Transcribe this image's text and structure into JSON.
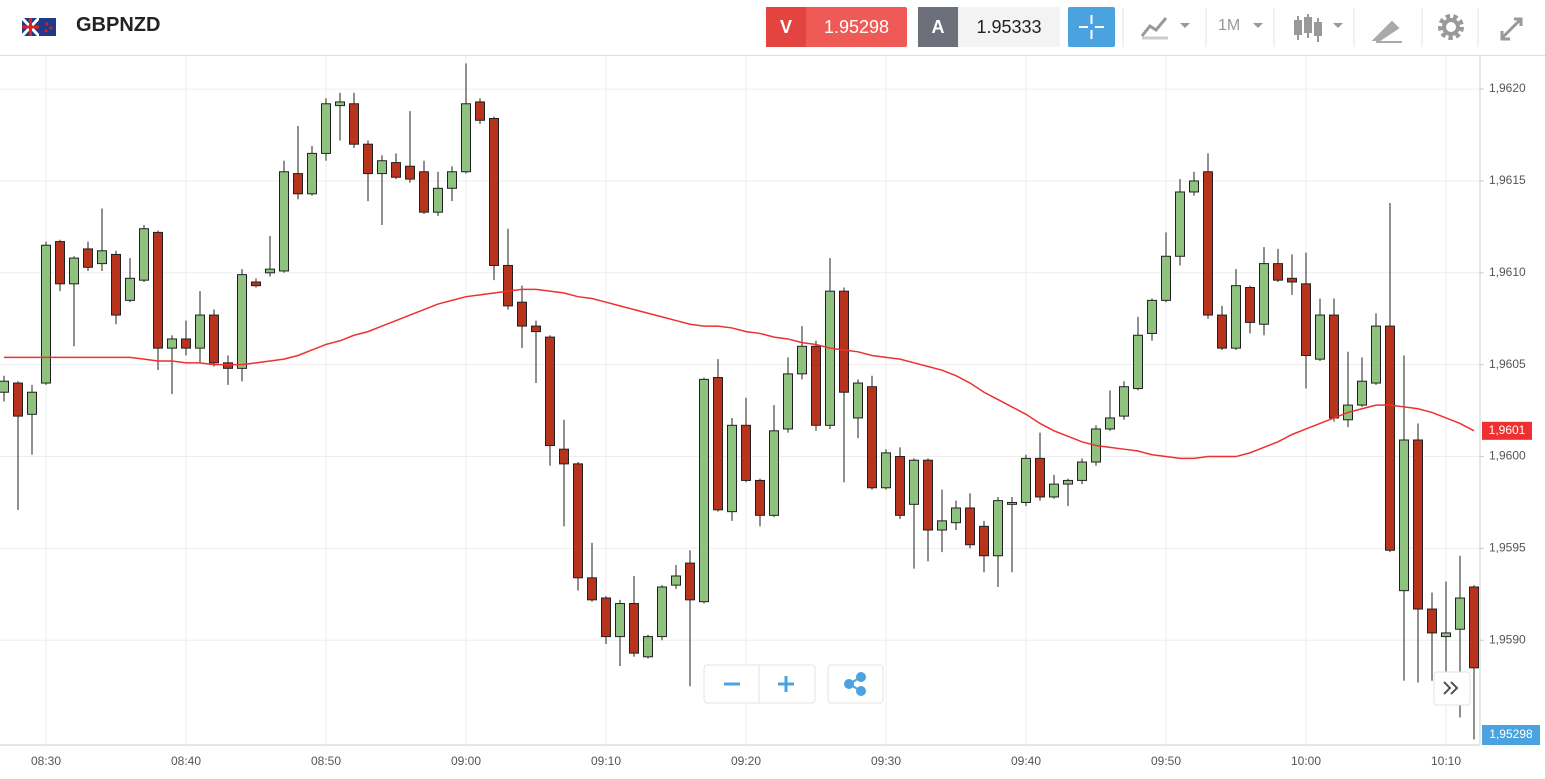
{
  "toolbar": {
    "symbol": "GBPNZD",
    "sell_label": "V",
    "sell_price": "1.95298",
    "buy_label": "A",
    "buy_price": "1.95333",
    "timeframe": "1M"
  },
  "chart_data": {
    "type": "candlestick",
    "categories": [
      null,
      null,
      null,
      "08:30",
      null,
      null,
      null,
      null,
      null,
      null,
      null,
      null,
      null,
      "08:40",
      null,
      null,
      null,
      null,
      null,
      null,
      null,
      null,
      null,
      "08:50",
      null,
      null,
      null,
      null,
      null,
      null,
      null,
      null,
      null,
      "09:00",
      null,
      null,
      null,
      null,
      null,
      null,
      null,
      null,
      null,
      "09:10",
      null,
      null,
      null,
      null,
      null,
      null,
      null,
      null,
      null,
      "09:20",
      null,
      null,
      null,
      null,
      null,
      null,
      null,
      null,
      null,
      "09:30",
      null,
      null,
      null,
      null,
      null,
      null,
      null,
      null,
      null,
      "09:40",
      null,
      null,
      null,
      null,
      null,
      null,
      null,
      null,
      null,
      "09:50",
      null,
      null,
      null,
      null,
      null,
      null,
      null,
      null,
      null,
      "10:00",
      null,
      null,
      null,
      null,
      null,
      null,
      null,
      null,
      null,
      "10:10",
      null,
      null
    ],
    "open": [
      1.96035,
      1.9604,
      1.96023,
      1.9604,
      1.96117,
      1.96094,
      1.96113,
      1.96105,
      1.9611,
      1.96085,
      1.96096,
      1.96122,
      1.96059,
      1.96064,
      1.96059,
      1.96077,
      1.96051,
      1.96048,
      1.96095,
      1.961,
      1.96101,
      1.96154,
      1.96143,
      1.96165,
      1.96191,
      1.96192,
      1.9617,
      1.96154,
      1.9616,
      1.96158,
      1.96155,
      1.96133,
      1.96146,
      1.96155,
      1.96193,
      1.96184,
      1.96104,
      1.96084,
      1.96071,
      1.96065,
      1.96004,
      1.95996,
      1.95934,
      1.95923,
      1.95902,
      1.9592,
      1.95891,
      1.95902,
      1.9593,
      1.95942,
      1.95921,
      1.96043,
      1.9597,
      1.96017,
      1.95987,
      1.95968,
      1.96015,
      1.96045,
      1.9606,
      1.96017,
      1.9609,
      1.96021,
      1.96038,
      1.95983,
      1.96,
      1.95974,
      1.95998,
      1.9596,
      1.95964,
      1.95972,
      1.95962,
      1.95946,
      1.95974,
      1.95975,
      1.95999,
      1.95978,
      1.95985,
      1.95987,
      1.95997,
      1.96015,
      1.96022,
      1.96037,
      1.96067,
      1.96085,
      1.96109,
      1.96144,
      1.96155,
      1.96077,
      1.96059,
      1.96092,
      1.96072,
      1.96105,
      1.96097,
      1.96094,
      1.96053,
      1.96077,
      1.9602,
      1.96028,
      1.9604,
      1.96071,
      1.95927,
      1.96009,
      1.95917,
      1.95902,
      1.95906,
      1.95929
    ],
    "high": [
      1.96044,
      1.96041,
      1.96039,
      1.96117,
      1.96118,
      1.96109,
      1.96117,
      1.96135,
      1.96112,
      1.96108,
      1.96126,
      1.96123,
      1.96066,
      1.96074,
      1.9609,
      1.9608,
      1.96055,
      1.96102,
      1.96097,
      1.9612,
      1.96161,
      1.9618,
      1.96169,
      1.96195,
      1.96198,
      1.96198,
      1.96172,
      1.96164,
      1.96165,
      1.96188,
      1.96161,
      1.96155,
      1.96158,
      1.96214,
      1.96195,
      1.96185,
      1.96124,
      1.96093,
      1.96074,
      1.96066,
      1.9602,
      1.95997,
      1.95953,
      1.95924,
      1.95922,
      1.95935,
      1.95903,
      1.9593,
      1.95941,
      1.95949,
      1.96043,
      1.96053,
      1.96021,
      1.96032,
      1.95988,
      1.96028,
      1.96054,
      1.96071,
      1.96063,
      1.96108,
      1.96092,
      1.96042,
      1.96044,
      1.96004,
      1.96005,
      1.95999,
      1.95999,
      1.95982,
      1.95976,
      1.9598,
      1.95965,
      1.95978,
      1.95978,
      1.96001,
      1.96013,
      1.9599,
      1.95988,
      1.95999,
      1.96017,
      1.96036,
      1.96041,
      1.96076,
      1.96086,
      1.96122,
      1.96151,
      1.96155,
      1.96165,
      1.96082,
      1.96102,
      1.96093,
      1.96114,
      1.96113,
      1.9611,
      1.96111,
      1.96086,
      1.96086,
      1.96057,
      1.96054,
      1.96078,
      1.96138,
      1.96055,
      1.96018,
      1.95926,
      1.95932,
      1.95946,
      1.9593
    ],
    "low": [
      1.9603,
      1.95971,
      1.96001,
      1.96039,
      1.9609,
      1.9606,
      1.96101,
      1.96101,
      1.96072,
      1.96084,
      1.96095,
      1.96047,
      1.96034,
      1.96055,
      1.96051,
      1.96049,
      1.96039,
      1.96041,
      1.96092,
      1.96098,
      1.961,
      1.9614,
      1.96142,
      1.96161,
      1.96172,
      1.96168,
      1.96139,
      1.96126,
      1.96151,
      1.96149,
      1.96132,
      1.96131,
      1.96139,
      1.96154,
      1.96181,
      1.96096,
      1.9608,
      1.96059,
      1.9604,
      1.95995,
      1.95962,
      1.95927,
      1.95921,
      1.95898,
      1.95886,
      1.95891,
      1.9589,
      1.959,
      1.95928,
      1.95875,
      1.9592,
      1.9597,
      1.95965,
      1.95986,
      1.95962,
      1.95967,
      1.96013,
      1.96042,
      1.96014,
      1.96015,
      1.95986,
      1.9601,
      1.95982,
      1.95982,
      1.95966,
      1.95939,
      1.95943,
      1.95948,
      1.9596,
      1.9595,
      1.95937,
      1.95929,
      1.95937,
      1.95973,
      1.95976,
      1.95977,
      1.95973,
      1.95985,
      1.95995,
      1.96014,
      1.9602,
      1.96036,
      1.96063,
      1.96084,
      1.96104,
      1.96142,
      1.96075,
      1.96058,
      1.96058,
      1.96067,
      1.96066,
      1.96095,
      1.96088,
      1.96037,
      1.96052,
      1.96019,
      1.96016,
      1.96027,
      1.96039,
      1.95948,
      1.95878,
      1.95877,
      1.95878,
      1.95868,
      1.95858,
      1.95846
    ],
    "close": [
      1.96041,
      1.96022,
      1.96035,
      1.96115,
      1.96094,
      1.96108,
      1.96103,
      1.96112,
      1.96077,
      1.96097,
      1.96124,
      1.96059,
      1.96064,
      1.96059,
      1.96077,
      1.96051,
      1.96048,
      1.96099,
      1.96093,
      1.96102,
      1.96155,
      1.96143,
      1.96165,
      1.96192,
      1.96193,
      1.9617,
      1.96154,
      1.96161,
      1.96152,
      1.96151,
      1.96133,
      1.96146,
      1.96155,
      1.96192,
      1.96183,
      1.96104,
      1.96082,
      1.96071,
      1.96068,
      1.96006,
      1.95996,
      1.95934,
      1.95922,
      1.95902,
      1.9592,
      1.95893,
      1.95902,
      1.95929,
      1.95935,
      1.95922,
      1.96042,
      1.95971,
      1.96017,
      1.95987,
      1.95968,
      1.96014,
      1.96045,
      1.9606,
      1.96017,
      1.9609,
      1.96035,
      1.9604,
      1.95983,
      1.96002,
      1.95968,
      1.95998,
      1.9596,
      1.95965,
      1.95972,
      1.95952,
      1.95946,
      1.95976,
      1.95975,
      1.95999,
      1.95978,
      1.95985,
      1.95987,
      1.95997,
      1.96015,
      1.96021,
      1.96038,
      1.96066,
      1.96085,
      1.96109,
      1.96144,
      1.9615,
      1.96077,
      1.96059,
      1.96093,
      1.96073,
      1.96105,
      1.96096,
      1.96095,
      1.96055,
      1.96077,
      1.96021,
      1.96028,
      1.96041,
      1.96071,
      1.95949,
      1.96009,
      1.95917,
      1.95904,
      1.95904,
      1.95923,
      1.95885
    ],
    "up_color": "#8fc27e",
    "down_color": "#b8331b",
    "line_series": [
      {
        "color": "#ee3030",
        "end_label": "1,9601",
        "values": [
          1.96054,
          1.96054,
          1.96054,
          1.96054,
          1.96054,
          1.96054,
          1.96054,
          1.96054,
          1.96054,
          1.96054,
          1.96053,
          1.96052,
          1.96052,
          1.96051,
          1.96051,
          1.9605,
          1.9605,
          1.9605,
          1.96051,
          1.96052,
          1.96053,
          1.96055,
          1.96058,
          1.96061,
          1.96063,
          1.96066,
          1.96068,
          1.96071,
          1.96074,
          1.96077,
          1.9608,
          1.96083,
          1.96085,
          1.96087,
          1.96088,
          1.96089,
          1.9609,
          1.96091,
          1.96091,
          1.9609,
          1.96089,
          1.96087,
          1.96086,
          1.96084,
          1.96082,
          1.9608,
          1.96078,
          1.96076,
          1.96074,
          1.96072,
          1.96071,
          1.96071,
          1.9607,
          1.96068,
          1.96067,
          1.96065,
          1.96064,
          1.96062,
          1.96061,
          1.96059,
          1.96058,
          1.96057,
          1.96055,
          1.96054,
          1.96053,
          1.96051,
          1.96049,
          1.96047,
          1.96044,
          1.9604,
          1.96035,
          1.96031,
          1.96027,
          1.96023,
          1.96018,
          1.96014,
          1.96011,
          1.96008,
          1.96006,
          1.96005,
          1.96004,
          1.96003,
          1.96001,
          1.96,
          1.95999,
          1.95999,
          1.96,
          1.96,
          1.96,
          1.96002,
          1.96005,
          1.96008,
          1.96012,
          1.96015,
          1.96018,
          1.96021,
          1.96024,
          1.96026,
          1.96028,
          1.96028,
          1.96027,
          1.96026,
          1.96024,
          1.96021,
          1.96018,
          1.96014
        ]
      }
    ],
    "price_marker_label": "1,95298",
    "ylim": [
      1.95843,
      1.96218
    ],
    "yticks": [
      {
        "value": 1.959,
        "label": "1,9590"
      },
      {
        "value": 1.9595,
        "label": "1,9595"
      },
      {
        "value": 1.96,
        "label": "1,9600"
      },
      {
        "value": 1.9605,
        "label": "1,9605"
      },
      {
        "value": 1.961,
        "label": "1,9610"
      },
      {
        "value": 1.9615,
        "label": "1,9615"
      },
      {
        "value": 1.962,
        "label": "1,9620"
      }
    ],
    "grid": true
  }
}
